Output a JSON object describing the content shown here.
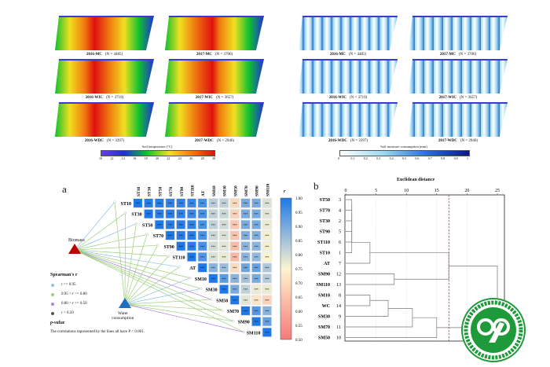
{
  "top_left": {
    "panels": [
      {
        "label": "2016-MC",
        "n": "(N = 4485)"
      },
      {
        "label": "2017-MC",
        "n": "(N = 3706)"
      },
      {
        "label": "2016-WIC",
        "n": "(N = 3719)"
      },
      {
        "label": "2017-WIC",
        "n": "(N = 3657)"
      },
      {
        "label": "2016-WDC",
        "n": "(N = 3397)"
      },
      {
        "label": "2017-WDC",
        "n": "(N = 2946)"
      }
    ],
    "colorbar_title": "Soil temperature (°C)",
    "colorbar_ticks": [
      "10",
      "12",
      "14",
      "16",
      "18",
      "20",
      "22",
      "24",
      "26",
      "28",
      "30"
    ],
    "colors": [
      "#6a3fd8",
      "#1f2fd8",
      "#10c030",
      "#f0e020",
      "#f07a10",
      "#e01010"
    ]
  },
  "top_right": {
    "panels": [
      {
        "label": "2016-MC",
        "n": "(N = 4485)"
      },
      {
        "label": "2017-MC",
        "n": "(N = 3706)"
      },
      {
        "label": "2016-WIC",
        "n": "(N = 3719)"
      },
      {
        "label": "2017-WIC",
        "n": "(N = 3657)"
      },
      {
        "label": "2016-WDC",
        "n": "(N = 3397)"
      },
      {
        "label": "2017-WDC",
        "n": "(N = 2946)"
      }
    ],
    "colorbar_title": "Soil moisture consumption (mm)",
    "colorbar_ticks": [
      "0",
      "0.1",
      "0.2",
      "0.3",
      "0.4",
      "0.5",
      "0.6",
      "0.7",
      "0.8",
      "0.9",
      "1"
    ],
    "colors": [
      "#ffffff",
      "#9fd8ee",
      "#2c6fd8",
      "#0a1a7a"
    ]
  },
  "panel_a": {
    "label": "a",
    "variables": [
      "ST10",
      "ST30",
      "ST50",
      "ST70",
      "ST90",
      "ST110",
      "AT",
      "SM10",
      "SM30",
      "SM50",
      "SM70",
      "SM90",
      "SM110"
    ],
    "significance": "***",
    "matrix": [
      [
        1.0,
        0.99,
        0.99,
        0.98,
        0.98,
        0.97,
        0.95,
        0.83,
        0.82,
        0.69,
        0.9,
        0.9,
        0.79
      ],
      [
        null,
        1.0,
        0.99,
        0.99,
        0.98,
        0.97,
        0.95,
        0.82,
        0.81,
        0.68,
        0.9,
        0.9,
        0.78
      ],
      [
        null,
        null,
        1.0,
        0.99,
        0.99,
        0.98,
        0.95,
        0.82,
        0.8,
        0.66,
        0.9,
        0.9,
        0.77
      ],
      [
        null,
        null,
        null,
        1.0,
        0.99,
        0.99,
        0.95,
        0.81,
        0.79,
        0.65,
        0.89,
        0.89,
        0.76
      ],
      [
        null,
        null,
        null,
        null,
        1.0,
        0.99,
        0.95,
        0.8,
        0.78,
        0.64,
        0.88,
        0.88,
        0.76
      ],
      [
        null,
        null,
        null,
        null,
        null,
        1.0,
        0.94,
        0.79,
        0.77,
        0.63,
        0.88,
        0.87,
        0.75
      ],
      [
        null,
        null,
        null,
        null,
        null,
        null,
        1.0,
        0.88,
        0.86,
        0.7,
        0.91,
        0.92,
        0.84
      ],
      [
        null,
        null,
        null,
        null,
        null,
        null,
        null,
        1.0,
        0.93,
        0.88,
        0.85,
        0.9,
        0.83
      ],
      [
        null,
        null,
        null,
        null,
        null,
        null,
        null,
        null,
        1.0,
        0.9,
        0.82,
        0.77,
        0.77
      ],
      [
        null,
        null,
        null,
        null,
        null,
        null,
        null,
        null,
        null,
        1.0,
        0.78,
        0.72,
        0.68
      ],
      [
        null,
        null,
        null,
        null,
        null,
        null,
        null,
        null,
        null,
        null,
        1.0,
        0.94,
        0.88
      ],
      [
        null,
        null,
        null,
        null,
        null,
        null,
        null,
        null,
        null,
        null,
        null,
        1.0,
        0.92
      ],
      [
        null,
        null,
        null,
        null,
        null,
        null,
        null,
        null,
        null,
        null,
        null,
        null,
        1.0
      ]
    ],
    "colorbar_title": "r",
    "colorbar_ticks": [
      "1.00",
      "0.95",
      "0.90",
      "0.85",
      "0.80",
      "0.75",
      "0.70",
      "0.65",
      "0.60",
      "0.55",
      "0.50"
    ],
    "colorscale": [
      "#f47a7a",
      "#fdf4d0",
      "#1f78e8"
    ],
    "biomass_label": "Biomass",
    "water_label_1": "Water",
    "water_label_2": "consumption",
    "biomass_links": [
      "b",
      "g",
      "b",
      "g",
      "g",
      "g",
      "b",
      "g",
      "g",
      "p",
      "g",
      "g",
      "g"
    ],
    "water_links": [
      "g",
      "g",
      "g",
      "g",
      "g",
      "g",
      "g",
      "b",
      "b",
      "g",
      "g",
      "g",
      "p"
    ],
    "link_colors": {
      "b": "#8cc0e8",
      "g": "#9ccf7a",
      "p": "#b07de0",
      "k": "#555555"
    },
    "legend_title": "Spearman's r",
    "legend": [
      {
        "key": "b",
        "text": "r >= 0.95"
      },
      {
        "key": "g",
        "text": "0.95 > r >= 0.80"
      },
      {
        "key": "p",
        "text": "0.80 > r >= 0.50"
      },
      {
        "key": "k",
        "text": "r < 0.50"
      }
    ],
    "pvalue_title": "p-value",
    "pvalue_note": "The correlations represented by the lines all have P < 0.001."
  },
  "chart_data": {
    "type": "dendrogram",
    "label": "b",
    "title": "Euclidean distance",
    "xlim": [
      0,
      26
    ],
    "xticks": [
      "0",
      "5",
      "10",
      "15",
      "20",
      "25"
    ],
    "cut_height": 17,
    "leaves": [
      {
        "name": "ST50",
        "id": "3"
      },
      {
        "name": "ST70",
        "id": "4"
      },
      {
        "name": "ST30",
        "id": "2"
      },
      {
        "name": "ST90",
        "id": "5"
      },
      {
        "name": "ST110",
        "id": "6"
      },
      {
        "name": "ST10",
        "id": "1"
      },
      {
        "name": "AT",
        "id": "7"
      },
      {
        "name": "SM90",
        "id": "12"
      },
      {
        "name": "SM110",
        "id": "13"
      },
      {
        "name": "SM10",
        "id": "8"
      },
      {
        "name": "WC",
        "id": "14"
      },
      {
        "name": "SM30",
        "id": "9"
      },
      {
        "name": "SM70",
        "id": "11"
      },
      {
        "name": "SM50",
        "id": "10"
      }
    ],
    "merges": [
      [
        0,
        1,
        1
      ],
      [
        14,
        2,
        1
      ],
      [
        15,
        3,
        1
      ],
      [
        16,
        4,
        1
      ],
      [
        17,
        5,
        1
      ],
      [
        18,
        6,
        4
      ],
      [
        7,
        8,
        8
      ],
      [
        19,
        20,
        17
      ],
      [
        9,
        10,
        4
      ],
      [
        22,
        11,
        7
      ],
      [
        23,
        12,
        11
      ],
      [
        24,
        13,
        15
      ],
      [
        21,
        25,
        25
      ]
    ]
  },
  "logo": {
    "text_top": "中国农业科学院棉花研究所",
    "text_bottom": "INSTITUTE OF COTTON RESEARCH OF CAAS",
    "year": "1957",
    "color": "#1f9a3a"
  }
}
